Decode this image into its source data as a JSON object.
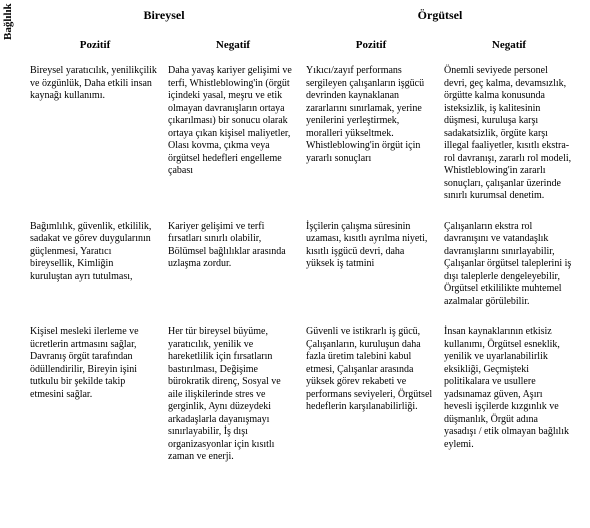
{
  "axis": {
    "baglilik": "Bağlılık"
  },
  "headers": {
    "top1": "Bireysel",
    "top2": "Örgütsel",
    "sub1": "Pozitif",
    "sub2": "Negatif",
    "sub3": "Pozitif",
    "sub4": "Negatif"
  },
  "rows": [
    {
      "c1": "Bireysel yaratıcılık, yenilikçilik ve özgünlük, Daha etkili insan kaynağı kullanımı.",
      "c2": "Daha yavaş kariyer gelişimi ve terfi, Whistleblowing'in (örgüt içindeki yasal, meşru ve etik olmayan davranışların ortaya çıkarılması) bir sonucu olarak ortaya çıkan kişisel maliyetler, Olası kovma, çıkma veya örgütsel hedefleri engelleme çabası",
      "c3": "Yıkıcı/zayıf performans sergileyen çalışanların işgücü devrinden kaynaklanan zararlarını sınırlamak, yerine yenilerini yerleştirmek, moralleri yükseltmek. Whistleblowing'in örgüt için yararlı sonuçları",
      "c4": "Önemli seviyede personel devri, geç kalma, devamsızlık, örgütte kalma konusunda isteksizlik, iş kalitesinin düşmesi, kuruluşa karşı sadakatsizlik, örgüte karşı illegal faaliyetler, kısıtlı ekstra-rol davranışı, zararlı rol modeli, Whistleblowing'in zararlı sonuçları, çalışanlar üzerinde sınırlı kurumsal denetim."
    },
    {
      "c1": "Bağımlılık, güvenlik, etkililik, sadakat ve görev duygularının güçlenmesi, Yaratıcı bireysellik, Kimliğin kuruluştan ayrı tutulması,",
      "c2": "Kariyer gelişimi ve terfi fırsatları sınırlı olabilir, Bölümsel bağlılıklar arasında uzlaşma zordur.",
      "c3": "İşçilerin çalışma süresinin uzaması, kısıtlı ayrılma niyeti, kısıtlı işgücü devri, daha yüksek iş tatmini",
      "c4": "Çalışanların ekstra rol davranışını ve vatandaşlık davranışlarını sınırlayabilir, Çalışanlar örgütsel taleplerini iş dışı taleplerle dengeleyebilir, Örgütsel etkililikte muhtemel azalmalar görülebilir."
    },
    {
      "c1": "Kişisel mesleki ilerleme ve ücretlerin artmasını sağlar, Davranış örgüt tarafından ödüllendirilir, Bireyin işini tutkulu bir şekilde takip etmesini sağlar.",
      "c2": "Her tür bireysel büyüme, yaratıcılık, yenilik ve hareketlilik için fırsatların bastırılması, Değişime bürokratik direnç, Sosyal ve aile ilişkilerinde stres ve gerginlik, Aynı düzeydeki arkadaşlarla dayanışmayı sınırlayabilir, İş dışı organizasyonlar için kısıtlı zaman ve enerji.",
      "c3": "Güvenli ve istikrarlı iş gücü, Çalışanların, kuruluşun daha fazla üretim talebini kabul etmesi, Çalışanlar arasında yüksek görev rekabeti ve performans seviyeleri, Örgütsel hedeflerin karşılanabilirliği.",
      "c4": "İnsan kaynaklarının etkisiz kullanımı, Örgütsel esneklik, yenilik ve uyarlanabilirlik eksikliği, Geçmişteki politikalara ve usullere yadsınamaz güven, Aşırı hevesli işçilerde kızgınlık ve düşmanlık, Örgüt adına yasadışı / etik olmayan bağlılık eylemi."
    }
  ]
}
